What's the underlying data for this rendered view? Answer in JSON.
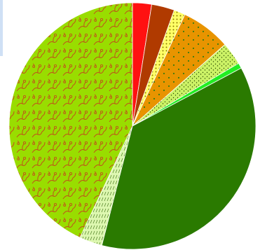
{
  "chart_data": {
    "type": "pie",
    "start_angle_deg": 0,
    "direction": "clockwise",
    "legend": "none",
    "slices": [
      {
        "value": 2.5,
        "color": "#ff1111",
        "pattern": "solid"
      },
      {
        "value": 3.0,
        "color": "#b03a00",
        "pattern": "solid"
      },
      {
        "value": 1.5,
        "color": "#ffff66",
        "pattern": "dots"
      },
      {
        "value": 6.5,
        "color": "#e89400",
        "pattern": "sparse-dots"
      },
      {
        "value": 3.0,
        "color": "#ccf266",
        "pattern": "speckle"
      },
      {
        "value": 0.7,
        "color": "#22ee22",
        "pattern": "solid"
      },
      {
        "value": 36.8,
        "color": "#2a7a00",
        "pattern": "solid"
      },
      {
        "value": 3.0,
        "color": "#ddf7b0",
        "pattern": "hatch"
      },
      {
        "value": 43.0,
        "color": "#99dd00",
        "pattern": "vines"
      }
    ]
  }
}
